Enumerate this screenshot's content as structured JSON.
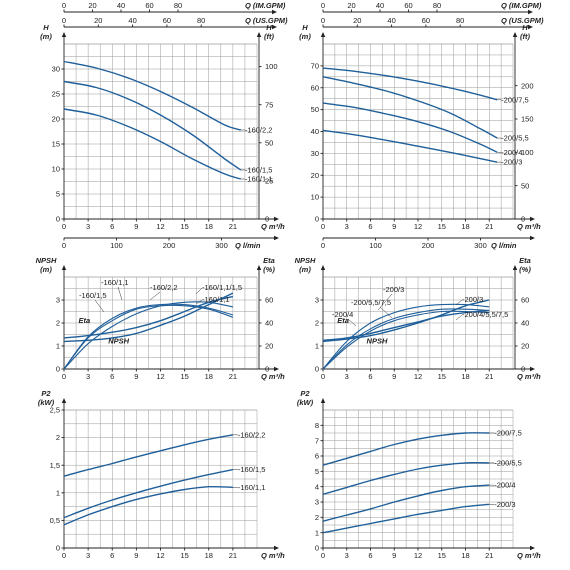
{
  "chart_data": [
    {
      "id": "h160",
      "type": "line",
      "xlabel": "Q m³/h",
      "ylabel": "H (m)",
      "y2label": "H (ft)",
      "xlim": [
        0,
        24
      ],
      "ylim": [
        0,
        35
      ],
      "xticks": [
        0,
        3,
        6,
        9,
        12,
        15,
        18,
        21
      ],
      "yticks": [
        0,
        5,
        10,
        15,
        20,
        25,
        30
      ],
      "y2ticks": [
        "0",
        "25",
        "50",
        "75",
        "100"
      ],
      "top_axis1": {
        "label": "Q (IM.GPM)",
        "ticks": [
          "0",
          "20",
          "40",
          "60",
          "80"
        ]
      },
      "top_axis2": {
        "label": "Q (US.GPM)",
        "ticks": [
          "0",
          "20",
          "40",
          "60",
          "80"
        ]
      },
      "bottom_axis2": {
        "label": "Q l/min",
        "ticks": [
          "0",
          "100",
          "200",
          "300"
        ]
      },
      "series": [
        {
          "name": "-160/2,2",
          "x": [
            0,
            4,
            8,
            12,
            16,
            20,
            22
          ],
          "y": [
            31.5,
            30.2,
            28.2,
            25.5,
            22.3,
            18.8,
            17.8
          ]
        },
        {
          "name": "-160/1,5",
          "x": [
            0,
            4,
            8,
            12,
            16,
            20,
            22
          ],
          "y": [
            27.5,
            26.3,
            24,
            20.8,
            16.8,
            12,
            9.8
          ]
        },
        {
          "name": "-160/1,1",
          "x": [
            0,
            4,
            8,
            12,
            16,
            20,
            22
          ],
          "y": [
            22,
            20.8,
            18.5,
            15.5,
            12,
            9,
            8
          ]
        }
      ]
    },
    {
      "id": "h200",
      "type": "line",
      "xlabel": "Q m³/h",
      "ylabel": "H (m)",
      "y2label": "H (ft)",
      "xlim": [
        0,
        24
      ],
      "ylim": [
        0,
        80
      ],
      "xticks": [
        0,
        3,
        6,
        9,
        12,
        15,
        18,
        21
      ],
      "yticks": [
        0,
        10,
        20,
        30,
        40,
        50,
        60,
        70
      ],
      "y2ticks": [
        "0",
        "50",
        "100",
        "150",
        "200"
      ],
      "top_axis1": {
        "label": "Q (IM.GPM)",
        "ticks": [
          "0",
          "20",
          "40",
          "60",
          "80"
        ]
      },
      "top_axis2": {
        "label": "Q (US.GPM)",
        "ticks": [
          "0",
          "20",
          "40",
          "60",
          "80"
        ]
      },
      "bottom_axis2": {
        "label": "Q l/min",
        "ticks": [
          "0",
          "100",
          "200",
          "300"
        ]
      },
      "series": [
        {
          "name": "-200/7,5",
          "x": [
            0,
            4,
            8,
            12,
            16,
            20,
            22
          ],
          "y": [
            69,
            67.5,
            65.5,
            63,
            60,
            56.5,
            54.5
          ]
        },
        {
          "name": "-200/5,5",
          "x": [
            0,
            4,
            8,
            12,
            16,
            20,
            22
          ],
          "y": [
            65,
            62,
            58.5,
            54,
            48.5,
            41,
            37
          ]
        },
        {
          "name": "-200/4",
          "x": [
            0,
            4,
            8,
            12,
            16,
            20,
            22
          ],
          "y": [
            53,
            51,
            48,
            44.5,
            40,
            34,
            30.5
          ]
        },
        {
          "name": "-200/3",
          "x": [
            0,
            4,
            8,
            12,
            16,
            20,
            22
          ],
          "y": [
            40.5,
            38.5,
            36,
            33.3,
            30.5,
            27.5,
            26
          ]
        }
      ]
    },
    {
      "id": "n160",
      "type": "line",
      "xlabel": "Q m³/h",
      "ylabel": "NPSH (m)",
      "y2label": "Eta (%)",
      "xlim": [
        0,
        24
      ],
      "ylim": [
        0,
        4
      ],
      "xticks": [
        0,
        3,
        6,
        9,
        12,
        15,
        18,
        21
      ],
      "yticks": [
        0,
        1,
        2,
        3
      ],
      "y2ticks": [
        "0",
        "20",
        "40",
        "60"
      ],
      "curve_tags": {
        "eta": "Eta",
        "npsh": "NPSH"
      },
      "series": [
        {
          "name": "-160/1,5",
          "axis": "eta",
          "x": [
            0,
            3,
            6,
            9,
            12,
            15,
            18,
            21
          ],
          "y": [
            0,
            28,
            44,
            53,
            56,
            56,
            53,
            47
          ]
        },
        {
          "name": "-160/1,1",
          "axis": "eta",
          "x": [
            0,
            3,
            6,
            9,
            12,
            15,
            18,
            21
          ],
          "y": [
            0,
            27,
            42,
            52,
            55,
            55,
            52,
            45
          ]
        },
        {
          "name": "-160/2,2",
          "axis": "eta",
          "x": [
            0,
            3,
            6,
            9,
            12,
            15,
            18,
            21
          ],
          "y": [
            0,
            22,
            37,
            48,
            55,
            58,
            58,
            54
          ]
        },
        {
          "name": "-160/1,1/1,5",
          "axis": "npsh",
          "x": [
            0,
            3,
            6,
            9,
            12,
            15,
            18,
            21
          ],
          "y": [
            1.2,
            1.25,
            1.35,
            1.55,
            1.9,
            2.3,
            2.8,
            3.3
          ]
        },
        {
          "name": "-160/1,1",
          "axis": "npsh",
          "x": [
            0,
            3,
            6,
            9,
            12,
            15,
            18,
            21
          ],
          "y": [
            1.35,
            1.45,
            1.6,
            1.8,
            2.1,
            2.5,
            2.9,
            3.15
          ]
        }
      ],
      "labels": [
        "-160/1,5",
        "-160/1,1",
        "-160/2,2",
        "-160/1,1/1,5",
        "-160/1,1"
      ]
    },
    {
      "id": "n200",
      "type": "line",
      "xlabel": "Q m³/h",
      "ylabel": "NPSH (m)",
      "y2label": "Eta (%)",
      "xlim": [
        0,
        24
      ],
      "ylim": [
        0,
        4
      ],
      "xticks": [
        0,
        3,
        6,
        9,
        12,
        15,
        18,
        21
      ],
      "yticks": [
        0,
        1,
        2,
        3
      ],
      "y2ticks": [
        "0",
        "20",
        "40",
        "60"
      ],
      "curve_tags": {
        "eta": "Eta",
        "npsh": "NPSH"
      },
      "series": [
        {
          "name": "-200/3",
          "axis": "eta",
          "x": [
            0,
            3,
            6,
            9,
            12,
            15,
            18,
            21
          ],
          "y": [
            0,
            24,
            40,
            49,
            54,
            56,
            56,
            54
          ]
        },
        {
          "name": "-200/5,5/7,5",
          "axis": "eta",
          "x": [
            0,
            3,
            6,
            9,
            12,
            15,
            18,
            21
          ],
          "y": [
            0,
            21,
            35,
            44,
            49,
            52,
            52,
            51
          ]
        },
        {
          "name": "-200/4",
          "axis": "eta",
          "x": [
            0,
            3,
            6,
            9,
            12,
            15,
            18,
            21
          ],
          "y": [
            0,
            19,
            33,
            42,
            47,
            50,
            50,
            49
          ]
        },
        {
          "name": "-200/3",
          "axis": "npsh",
          "x": [
            0,
            3,
            6,
            9,
            12,
            15,
            18,
            21
          ],
          "y": [
            1.2,
            1.3,
            1.45,
            1.7,
            2.0,
            2.35,
            2.75,
            3.0
          ]
        },
        {
          "name": "-200/4/5,5/7,5",
          "axis": "npsh",
          "x": [
            0,
            3,
            6,
            9,
            12,
            15,
            18,
            21
          ],
          "y": [
            1.25,
            1.35,
            1.55,
            1.8,
            2.05,
            2.3,
            2.45,
            2.55
          ]
        }
      ],
      "labels": [
        "-200/3",
        "-200/5,5/7,5",
        "-200/4",
        "-200/3",
        "-200/4/5,5/7,5"
      ]
    },
    {
      "id": "p160",
      "type": "line",
      "xlabel": "Q m³/h",
      "ylabel": "P2 (kW)",
      "xlim": [
        0,
        24
      ],
      "ylim": [
        0,
        2.5
      ],
      "xticks": [
        0,
        3,
        6,
        9,
        12,
        15,
        18,
        21
      ],
      "yticks": [
        "0",
        "0,5",
        "1",
        "1,5",
        "2",
        "2,5"
      ],
      "ytick_values": [
        0,
        0.5,
        1,
        1.5,
        2,
        2.5
      ],
      "series": [
        {
          "name": "-160/2,2",
          "x": [
            0,
            3,
            6,
            9,
            12,
            15,
            18,
            21
          ],
          "y": [
            1.3,
            1.42,
            1.53,
            1.65,
            1.76,
            1.87,
            1.97,
            2.05
          ]
        },
        {
          "name": "-160/1,5",
          "x": [
            0,
            3,
            6,
            9,
            12,
            15,
            18,
            21
          ],
          "y": [
            0.55,
            0.72,
            0.87,
            1.0,
            1.12,
            1.23,
            1.33,
            1.42
          ]
        },
        {
          "name": "-160/1,1",
          "x": [
            0,
            3,
            6,
            9,
            12,
            15,
            18,
            21
          ],
          "y": [
            0.42,
            0.6,
            0.75,
            0.88,
            0.98,
            1.06,
            1.11,
            1.1
          ]
        }
      ]
    },
    {
      "id": "p200",
      "type": "line",
      "xlabel": "Q m³/h",
      "ylabel": "P2 (kW)",
      "xlim": [
        0,
        24
      ],
      "ylim": [
        0,
        9
      ],
      "xticks": [
        0,
        3,
        6,
        9,
        12,
        15,
        18,
        21
      ],
      "yticks": [
        0,
        1,
        2,
        3,
        4,
        5,
        6,
        7,
        8
      ],
      "series": [
        {
          "name": "-200/7,5",
          "x": [
            0,
            3,
            6,
            9,
            12,
            15,
            18,
            21
          ],
          "y": [
            5.4,
            5.85,
            6.3,
            6.75,
            7.1,
            7.35,
            7.5,
            7.5
          ]
        },
        {
          "name": "-200/5,5",
          "x": [
            0,
            3,
            6,
            9,
            12,
            15,
            18,
            21
          ],
          "y": [
            3.5,
            3.95,
            4.4,
            4.8,
            5.15,
            5.4,
            5.55,
            5.55
          ]
        },
        {
          "name": "-200/4",
          "x": [
            0,
            3,
            6,
            9,
            12,
            15,
            18,
            21
          ],
          "y": [
            1.75,
            2.15,
            2.55,
            3.0,
            3.4,
            3.75,
            4.0,
            4.1
          ]
        },
        {
          "name": "-200/3",
          "x": [
            0,
            3,
            6,
            9,
            12,
            15,
            18,
            21
          ],
          "y": [
            1.0,
            1.3,
            1.6,
            1.9,
            2.2,
            2.45,
            2.7,
            2.85
          ]
        }
      ]
    }
  ]
}
